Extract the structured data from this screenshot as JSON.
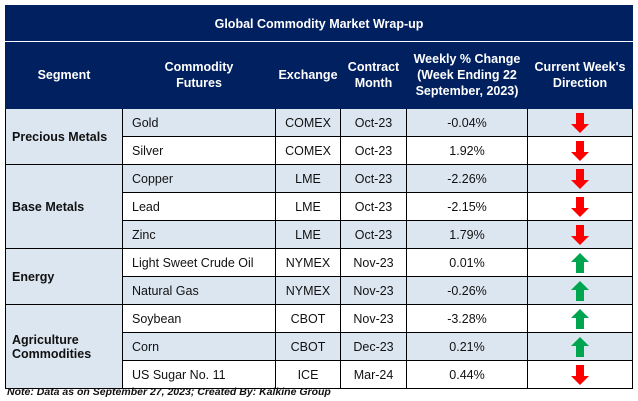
{
  "title": "Global Commodity Market Wrap-up",
  "headers": {
    "segment": "Segment",
    "commodity": "Commodity Futures",
    "exchange": "Exchange",
    "month": "Contract Month",
    "change": "Weekly % Change (Week Ending 22 September, 2023)",
    "direction": "Current Week's Direction"
  },
  "colors": {
    "header": "#002060",
    "shade": "#dce6f1",
    "up": "#00a550",
    "down": "#ff0000"
  },
  "segments": [
    {
      "name": "Precious Metals",
      "rows": [
        {
          "commodity": "Gold",
          "exchange": "COMEX",
          "month": "Oct-23",
          "change": "-0.04%",
          "direction": "down"
        },
        {
          "commodity": "Silver",
          "exchange": "COMEX",
          "month": "Oct-23",
          "change": "1.92%",
          "direction": "down"
        }
      ]
    },
    {
      "name": "Base Metals",
      "rows": [
        {
          "commodity": "Copper",
          "exchange": "LME",
          "month": "Oct-23",
          "change": "-2.26%",
          "direction": "down"
        },
        {
          "commodity": "Lead",
          "exchange": "LME",
          "month": "Oct-23",
          "change": "-2.15%",
          "direction": "down"
        },
        {
          "commodity": "Zinc",
          "exchange": "LME",
          "month": "Oct-23",
          "change": "1.79%",
          "direction": "down"
        }
      ]
    },
    {
      "name": "Energy",
      "rows": [
        {
          "commodity": "Light Sweet Crude Oil",
          "exchange": "NYMEX",
          "month": "Nov-23",
          "change": "0.01%",
          "direction": "up"
        },
        {
          "commodity": "Natural Gas",
          "exchange": "NYMEX",
          "month": "Nov-23",
          "change": "-0.26%",
          "direction": "up"
        }
      ]
    },
    {
      "name": "Agriculture Commodities",
      "rows": [
        {
          "commodity": "Soybean",
          "exchange": "CBOT",
          "month": "Nov-23",
          "change": "-3.28%",
          "direction": "up"
        },
        {
          "commodity": "Corn",
          "exchange": "CBOT",
          "month": "Dec-23",
          "change": "0.21%",
          "direction": "up"
        },
        {
          "commodity": "US Sugar No. 11",
          "exchange": "ICE",
          "month": "Mar-24",
          "change": "0.44%",
          "direction": "down"
        }
      ]
    }
  ],
  "note": "Note: Data as on September 27, 2023; Created By: Kalkine Group"
}
